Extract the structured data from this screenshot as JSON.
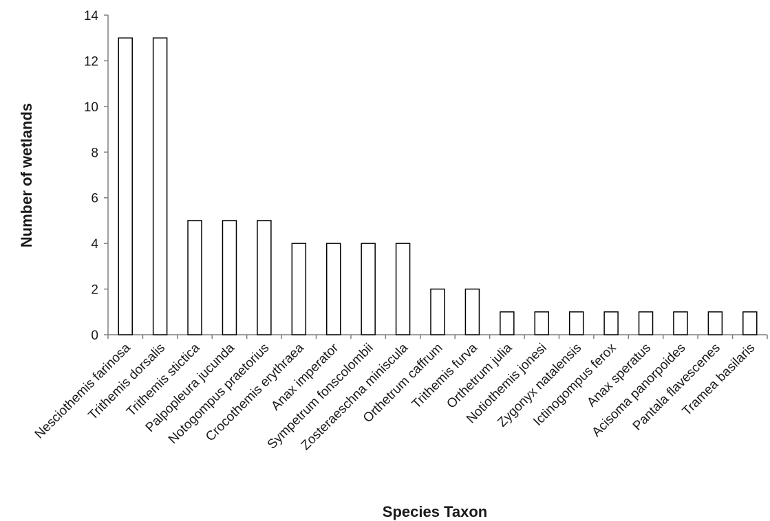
{
  "chart_data": {
    "type": "bar",
    "title": "",
    "xlabel": "Species Taxon",
    "ylabel": "Number of wetlands",
    "ylim": [
      0,
      14
    ],
    "yticks": [
      0,
      2,
      4,
      6,
      8,
      10,
      12,
      14
    ],
    "grid": false,
    "legend": "none",
    "bar_fill": "#ffffff",
    "bar_stroke": "#000000",
    "axis_color": "#7f7f7f",
    "categories": [
      "Nesciothemis farinosa",
      "Trithemis dorsalis",
      "Trithemis stictica",
      "Palpopleura jucunda",
      "Notogompus praetorius",
      "Crocothemis erythraea",
      "Anax imperator",
      "Sympetrum fonscolombii",
      "Zosteraeschna miniscula",
      "Orthetrum caffrum",
      "Trithemis furva",
      "Orthetrum julia",
      "Notiothemis jonesi",
      "Zygonyx natalensis",
      "Ictinogompus ferox",
      "Anax speratus",
      "Acisoma panorpoides",
      "Pantala flavescenes",
      "Tramea basilaris"
    ],
    "values": [
      13,
      13,
      5,
      5,
      5,
      4,
      4,
      4,
      4,
      2,
      2,
      1,
      1,
      1,
      1,
      1,
      1,
      1,
      1
    ]
  }
}
